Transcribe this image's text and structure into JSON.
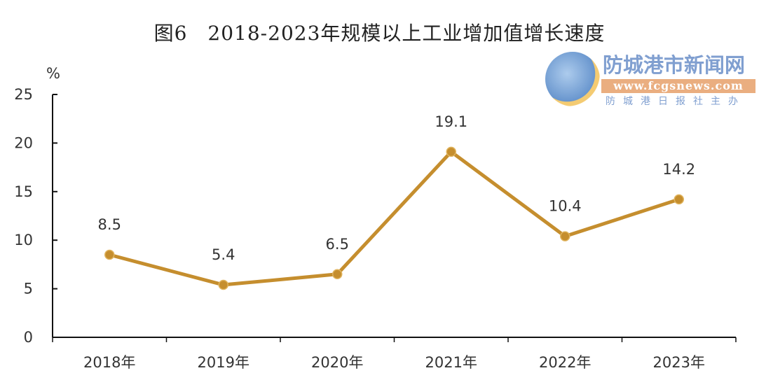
{
  "chart_data": {
    "type": "line",
    "title": "图6　2018-2023年规模以上工业增加值增长速度",
    "ylabel": "%",
    "xlabel": "",
    "categories": [
      "2018年",
      "2019年",
      "2020年",
      "2021年",
      "2022年",
      "2023年"
    ],
    "values": [
      8.5,
      5.4,
      6.5,
      19.1,
      10.4,
      14.2
    ],
    "data_labels": [
      "8.5",
      "5.4",
      "6.5",
      "19.1",
      "10.4",
      "14.2"
    ],
    "ylim": [
      0,
      25
    ],
    "yticks": [
      "0",
      "5",
      "10",
      "15",
      "20",
      "25"
    ],
    "grid": false,
    "line_color": "#C58E2E"
  },
  "watermark": {
    "name": "防城港市新闻网",
    "url": "www.fcgsnews.com",
    "sub": "防城港日报社主办"
  }
}
